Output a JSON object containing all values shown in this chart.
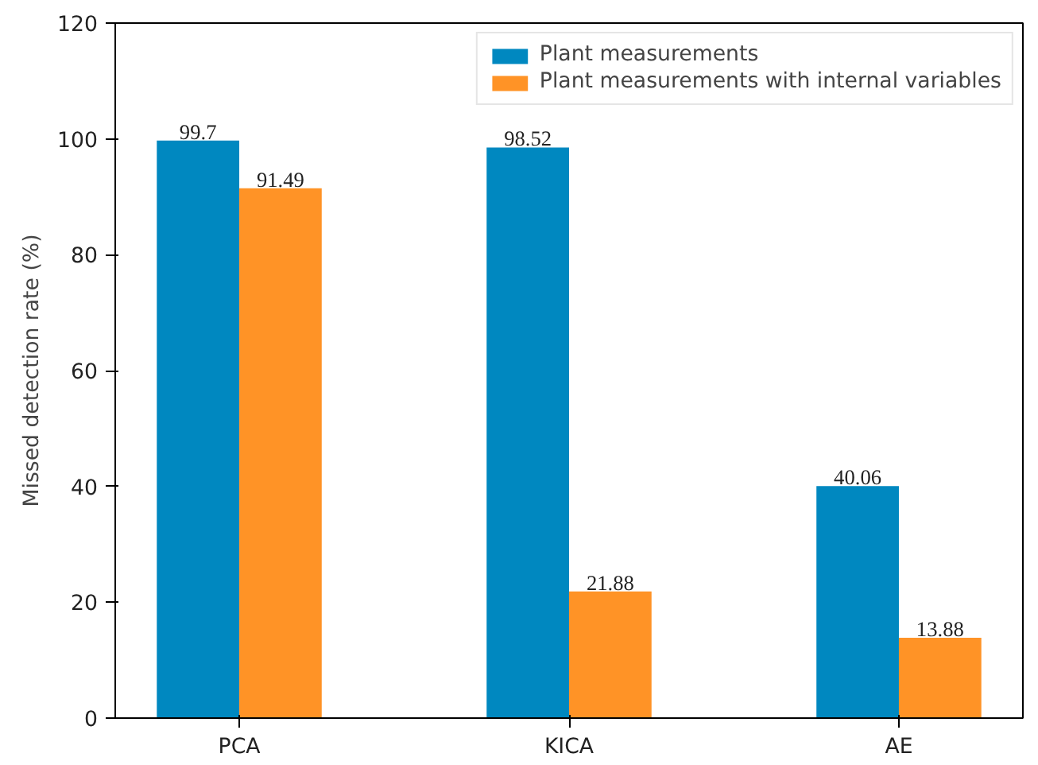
{
  "chart_data": {
    "type": "bar",
    "ylabel": "Missed detection rate (%)",
    "categories": [
      "PCA",
      "KICA",
      "AE"
    ],
    "series": [
      {
        "name": "Plant measurements",
        "color": "#0088c0",
        "values": [
          99.7,
          98.52,
          40.06
        ]
      },
      {
        "name": "Plant measurements with internal variables",
        "color": "#ff9326",
        "values": [
          91.49,
          21.88,
          13.88
        ]
      }
    ],
    "ylim": [
      0,
      120
    ],
    "yticks": [
      0,
      20,
      40,
      60,
      80,
      100,
      120
    ],
    "data_labels": true,
    "legend": "top right",
    "grid": false
  }
}
